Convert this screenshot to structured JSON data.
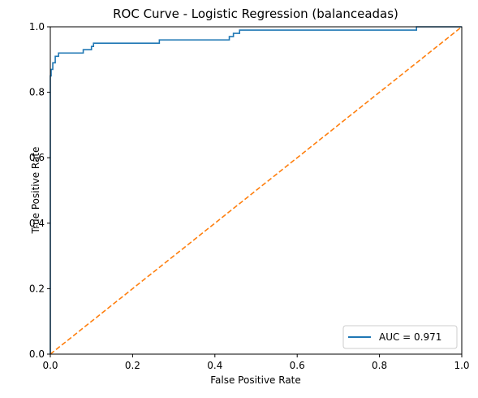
{
  "chart_data": {
    "type": "line",
    "title": "ROC Curve - Logistic Regression (balanceadas)",
    "xlabel": "False Positive Rate",
    "ylabel": "True Positive Rate",
    "xlim": [
      0.0,
      1.0
    ],
    "ylim": [
      0.0,
      1.0
    ],
    "xticks": [
      "0.0",
      "0.2",
      "0.4",
      "0.6",
      "0.8",
      "1.0"
    ],
    "yticks": [
      "0.0",
      "0.2",
      "0.4",
      "0.6",
      "0.8",
      "1.0"
    ],
    "grid": false,
    "legend_position": "bottom-right",
    "series": [
      {
        "name": "AUC = 0.971",
        "color": "#1f77b4",
        "style": "solid",
        "x": [
          0.0,
          0.0,
          0.002,
          0.002,
          0.006,
          0.006,
          0.012,
          0.012,
          0.02,
          0.02,
          0.08,
          0.08,
          0.1,
          0.1,
          0.105,
          0.105,
          0.265,
          0.265,
          0.435,
          0.435,
          0.445,
          0.445,
          0.46,
          0.46,
          0.89,
          0.89,
          1.0
        ],
        "y": [
          0.0,
          0.85,
          0.85,
          0.87,
          0.87,
          0.89,
          0.89,
          0.91,
          0.91,
          0.92,
          0.92,
          0.93,
          0.93,
          0.94,
          0.94,
          0.95,
          0.95,
          0.96,
          0.96,
          0.97,
          0.97,
          0.98,
          0.98,
          0.99,
          0.99,
          1.0,
          1.0
        ]
      },
      {
        "name": "",
        "color": "#ff7f0e",
        "style": "dashed",
        "x": [
          0.0,
          1.0
        ],
        "y": [
          0.0,
          1.0
        ]
      }
    ]
  }
}
